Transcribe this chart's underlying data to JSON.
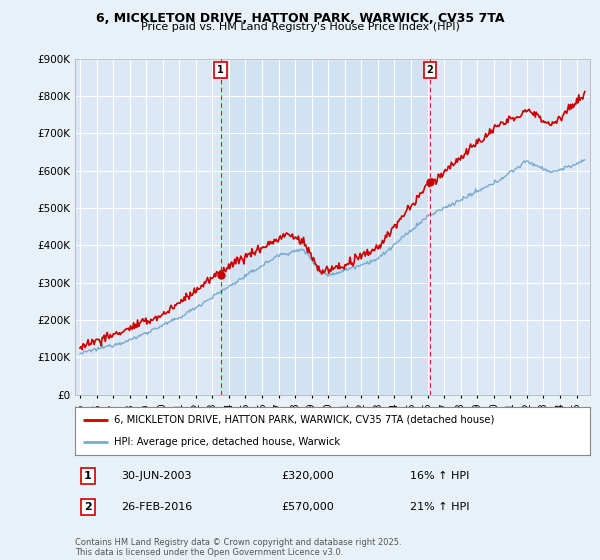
{
  "title": "6, MICKLETON DRIVE, HATTON PARK, WARWICK, CV35 7TA",
  "subtitle": "Price paid vs. HM Land Registry's House Price Index (HPI)",
  "y_ticks": [
    0,
    100000,
    200000,
    300000,
    400000,
    500000,
    600000,
    700000,
    800000,
    900000
  ],
  "y_tick_labels": [
    "£0",
    "£100K",
    "£200K",
    "£300K",
    "£400K",
    "£500K",
    "£600K",
    "£700K",
    "£800K",
    "£900K"
  ],
  "sale1_year": 2003.5,
  "sale1_price": 320000,
  "sale1_label": "1",
  "sale1_date": "30-JUN-2003",
  "sale1_amount": "£320,000",
  "sale1_hpi": "16% ↑ HPI",
  "sale2_year": 2016.15,
  "sale2_price": 570000,
  "sale2_label": "2",
  "sale2_date": "26-FEB-2016",
  "sale2_amount": "£570,000",
  "sale2_hpi": "21% ↑ HPI",
  "red_line_color": "#cc0000",
  "blue_line_color": "#7aabcf",
  "plot_bg_color": "#dce8f5",
  "inner_bg_color": "#dce8f5",
  "outer_bg_color": "#e8f0f8",
  "grid_color": "#ffffff",
  "vline_color": "#cc0000",
  "annotation_box_color": "#cc0000",
  "footer_text": "Contains HM Land Registry data © Crown copyright and database right 2025.\nThis data is licensed under the Open Government Licence v3.0.",
  "legend_line1": "6, MICKLETON DRIVE, HATTON PARK, WARWICK, CV35 7TA (detached house)",
  "legend_line2": "HPI: Average price, detached house, Warwick"
}
